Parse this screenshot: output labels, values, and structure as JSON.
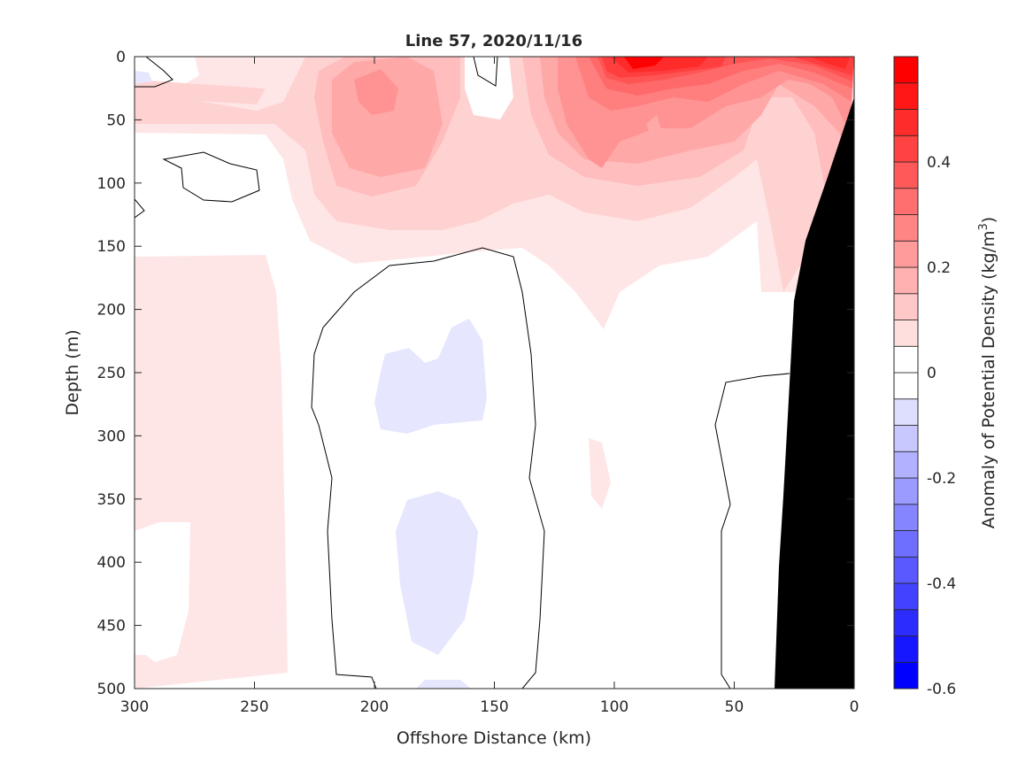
{
  "chart_data": {
    "type": "heatmap",
    "subtype": "filled-contour",
    "title": "Line 57, 2020/11/16",
    "xlabel": "Offshore Distance (km)",
    "ylabel": "Depth (m)",
    "xlim": [
      300,
      0
    ],
    "ylim": [
      0,
      500
    ],
    "x_reversed": true,
    "y_reversed": true,
    "xticks": [
      300,
      250,
      200,
      150,
      100,
      50,
      0
    ],
    "yticks": [
      0,
      50,
      100,
      150,
      200,
      250,
      300,
      350,
      400,
      450,
      500
    ],
    "colorbar": {
      "label": "Anomaly of Potential Density (kg/m",
      "label_sup": "3",
      "label_end": ")",
      "range": [
        -0.6,
        0.6
      ],
      "level_step": 0.05,
      "ticks": [
        -0.6,
        -0.4,
        -0.2,
        0,
        0.2,
        0.4
      ],
      "tick_labels": [
        "-0.6",
        "-0.4",
        "-0.2",
        "0",
        "0.2",
        "0.4"
      ],
      "colormap": "blue-white-red",
      "max_color": "#ff0000",
      "min_color": "#0000ff"
    },
    "contour_line_level": 0,
    "features": {
      "max_anomaly_region": "surface, 0-100 km offshore, ~0.55 kg/m3",
      "min_anomaly_region": "~150-200 km, 250-450 m, ~-0.05 to -0.1 kg/m3",
      "bathymetry": "black filled, nearshore 0-35 km"
    }
  }
}
